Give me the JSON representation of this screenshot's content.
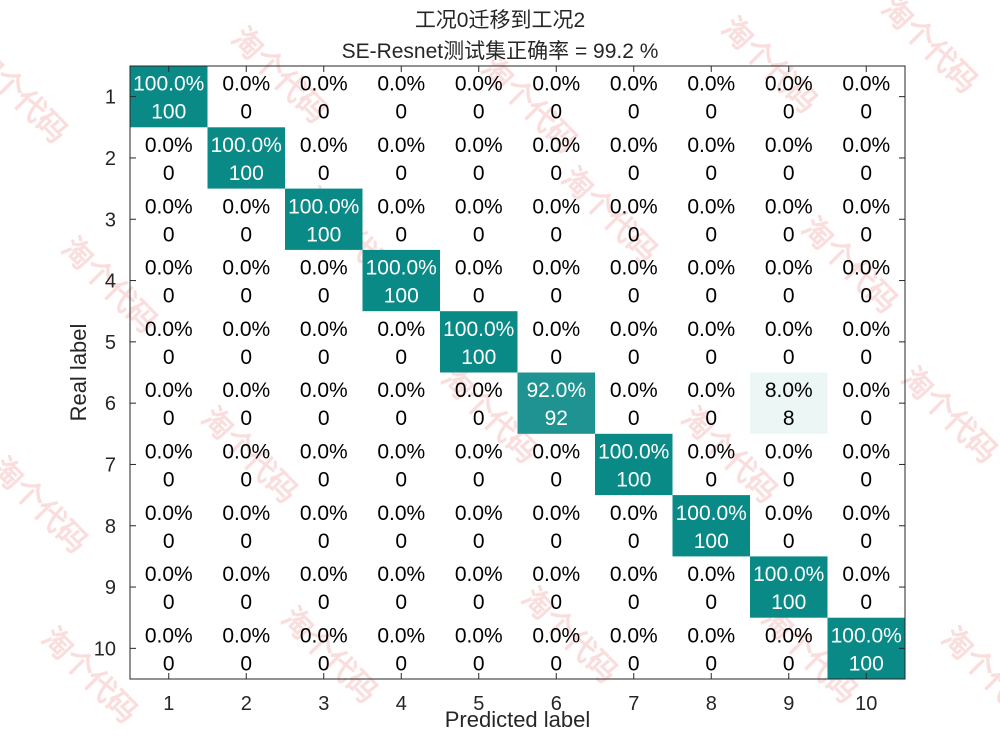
{
  "chart_data": {
    "type": "heatmap",
    "title": "工况0迁移到工况2",
    "subtitle": "SE-Resnet测试集正确率 = 99.2 %",
    "xlabel": "Predicted label",
    "ylabel": "Real label",
    "x_categories": [
      "1",
      "2",
      "3",
      "4",
      "5",
      "6",
      "7",
      "8",
      "9",
      "10"
    ],
    "y_categories": [
      "1",
      "2",
      "3",
      "4",
      "5",
      "6",
      "7",
      "8",
      "9",
      "10"
    ],
    "counts": [
      [
        100,
        0,
        0,
        0,
        0,
        0,
        0,
        0,
        0,
        0
      ],
      [
        0,
        100,
        0,
        0,
        0,
        0,
        0,
        0,
        0,
        0
      ],
      [
        0,
        0,
        100,
        0,
        0,
        0,
        0,
        0,
        0,
        0
      ],
      [
        0,
        0,
        0,
        100,
        0,
        0,
        0,
        0,
        0,
        0
      ],
      [
        0,
        0,
        0,
        0,
        100,
        0,
        0,
        0,
        0,
        0
      ],
      [
        0,
        0,
        0,
        0,
        0,
        92,
        0,
        0,
        8,
        0
      ],
      [
        0,
        0,
        0,
        0,
        0,
        0,
        100,
        0,
        0,
        0
      ],
      [
        0,
        0,
        0,
        0,
        0,
        0,
        0,
        100,
        0,
        0
      ],
      [
        0,
        0,
        0,
        0,
        0,
        0,
        0,
        0,
        100,
        0
      ],
      [
        0,
        0,
        0,
        0,
        0,
        0,
        0,
        0,
        0,
        100
      ]
    ],
    "percent_labels": [
      [
        "100.0%",
        "0.0%",
        "0.0%",
        "0.0%",
        "0.0%",
        "0.0%",
        "0.0%",
        "0.0%",
        "0.0%",
        "0.0%"
      ],
      [
        "0.0%",
        "100.0%",
        "0.0%",
        "0.0%",
        "0.0%",
        "0.0%",
        "0.0%",
        "0.0%",
        "0.0%",
        "0.0%"
      ],
      [
        "0.0%",
        "0.0%",
        "100.0%",
        "0.0%",
        "0.0%",
        "0.0%",
        "0.0%",
        "0.0%",
        "0.0%",
        "0.0%"
      ],
      [
        "0.0%",
        "0.0%",
        "0.0%",
        "100.0%",
        "0.0%",
        "0.0%",
        "0.0%",
        "0.0%",
        "0.0%",
        "0.0%"
      ],
      [
        "0.0%",
        "0.0%",
        "0.0%",
        "0.0%",
        "100.0%",
        "0.0%",
        "0.0%",
        "0.0%",
        "0.0%",
        "0.0%"
      ],
      [
        "0.0%",
        "0.0%",
        "0.0%",
        "0.0%",
        "0.0%",
        "92.0%",
        "0.0%",
        "0.0%",
        "8.0%",
        "0.0%"
      ],
      [
        "0.0%",
        "0.0%",
        "0.0%",
        "0.0%",
        "0.0%",
        "0.0%",
        "100.0%",
        "0.0%",
        "0.0%",
        "0.0%"
      ],
      [
        "0.0%",
        "0.0%",
        "0.0%",
        "0.0%",
        "0.0%",
        "0.0%",
        "0.0%",
        "100.0%",
        "0.0%",
        "0.0%"
      ],
      [
        "0.0%",
        "0.0%",
        "0.0%",
        "0.0%",
        "0.0%",
        "0.0%",
        "0.0%",
        "0.0%",
        "100.0%",
        "0.0%"
      ],
      [
        "0.0%",
        "0.0%",
        "0.0%",
        "0.0%",
        "0.0%",
        "0.0%",
        "0.0%",
        "0.0%",
        "0.0%",
        "100.0%"
      ]
    ],
    "colors": {
      "high": "#0a8a87",
      "low": "#ffffff",
      "light_text": "#ffffff",
      "dark_text": "#000000",
      "axis": "#262626"
    },
    "grid": false
  },
  "watermark": {
    "text": "淘个代码",
    "color": "#f2a0a0"
  }
}
